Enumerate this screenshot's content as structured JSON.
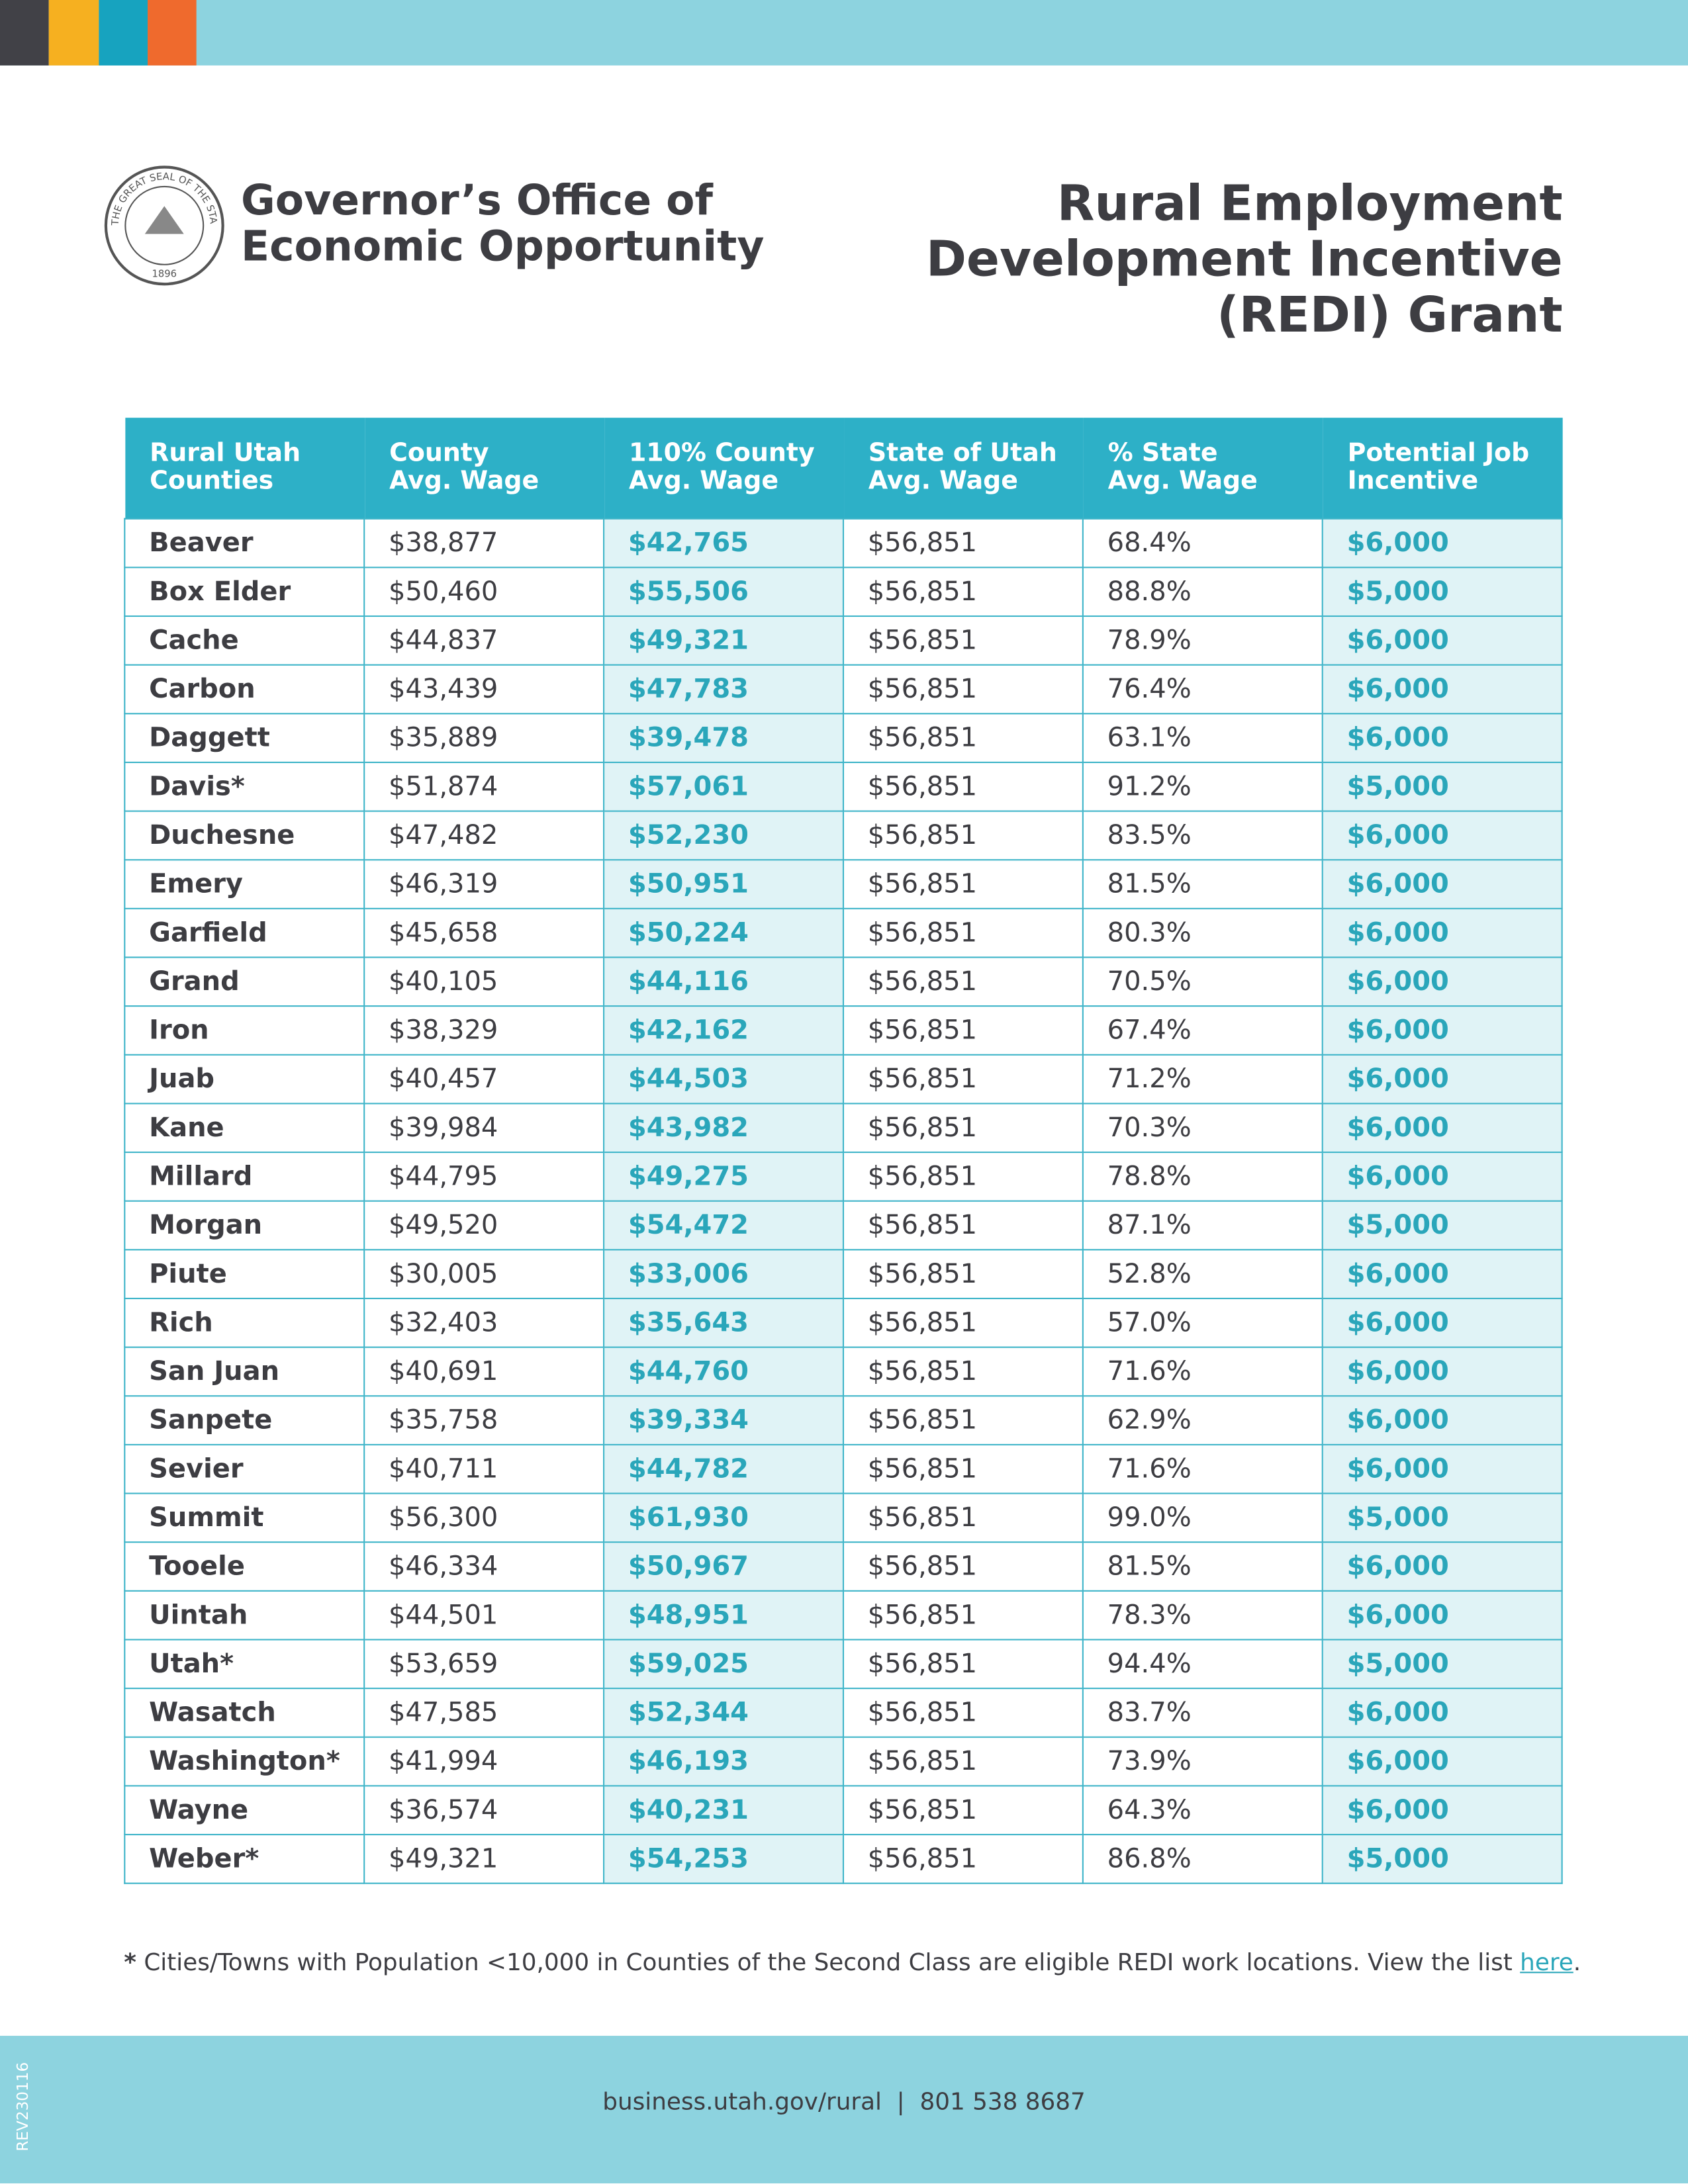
{
  "header": {
    "org": [
      "Governor’s Office of",
      "Economic Opportunity"
    ],
    "seal": {
      "text": "THE GREAT SEAL OF THE STATE OF UTAH",
      "year": "1896"
    },
    "title": [
      "Rural Employment",
      "Development Incentive",
      "(REDI) Grant"
    ]
  },
  "table": {
    "columns": [
      [
        "Rural Utah",
        "Counties"
      ],
      [
        "County",
        "Avg. Wage"
      ],
      [
        "110% County",
        "Avg. Wage"
      ],
      [
        "State of Utah",
        "Avg. Wage"
      ],
      [
        "% State",
        "Avg. Wage"
      ],
      [
        "Potential Job",
        "Incentive"
      ]
    ],
    "rows": [
      [
        "Beaver",
        "$38,877",
        "$42,765",
        "$56,851",
        "68.4%",
        "$6,000"
      ],
      [
        "Box Elder",
        "$50,460",
        "$55,506",
        "$56,851",
        "88.8%",
        "$5,000"
      ],
      [
        "Cache",
        "$44,837",
        "$49,321",
        "$56,851",
        "78.9%",
        "$6,000"
      ],
      [
        "Carbon",
        "$43,439",
        "$47,783",
        "$56,851",
        "76.4%",
        "$6,000"
      ],
      [
        "Daggett",
        "$35,889",
        "$39,478",
        "$56,851",
        "63.1%",
        "$6,000"
      ],
      [
        "Davis*",
        "$51,874",
        "$57,061",
        "$56,851",
        "91.2%",
        "$5,000"
      ],
      [
        "Duchesne",
        "$47,482",
        "$52,230",
        "$56,851",
        "83.5%",
        "$6,000"
      ],
      [
        "Emery",
        "$46,319",
        "$50,951",
        "$56,851",
        "81.5%",
        "$6,000"
      ],
      [
        "Garfield",
        "$45,658",
        "$50,224",
        "$56,851",
        "80.3%",
        "$6,000"
      ],
      [
        "Grand",
        "$40,105",
        "$44,116",
        "$56,851",
        "70.5%",
        "$6,000"
      ],
      [
        "Iron",
        "$38,329",
        "$42,162",
        "$56,851",
        "67.4%",
        "$6,000"
      ],
      [
        "Juab",
        "$40,457",
        "$44,503",
        "$56,851",
        "71.2%",
        "$6,000"
      ],
      [
        "Kane",
        "$39,984",
        "$43,982",
        "$56,851",
        "70.3%",
        "$6,000"
      ],
      [
        "Millard",
        "$44,795",
        "$49,275",
        "$56,851",
        "78.8%",
        "$6,000"
      ],
      [
        "Morgan",
        "$49,520",
        "$54,472",
        "$56,851",
        "87.1%",
        "$5,000"
      ],
      [
        "Piute",
        "$30,005",
        "$33,006",
        "$56,851",
        "52.8%",
        "$6,000"
      ],
      [
        "Rich",
        "$32,403",
        "$35,643",
        "$56,851",
        "57.0%",
        "$6,000"
      ],
      [
        "San Juan",
        "$40,691",
        "$44,760",
        "$56,851",
        "71.6%",
        "$6,000"
      ],
      [
        "Sanpete",
        "$35,758",
        "$39,334",
        "$56,851",
        "62.9%",
        "$6,000"
      ],
      [
        "Sevier",
        "$40,711",
        "$44,782",
        "$56,851",
        "71.6%",
        "$6,000"
      ],
      [
        "Summit",
        "$56,300",
        "$61,930",
        "$56,851",
        "99.0%",
        "$5,000"
      ],
      [
        "Tooele",
        "$46,334",
        "$50,967",
        "$56,851",
        "81.5%",
        "$6,000"
      ],
      [
        "Uintah",
        "$44,501",
        "$48,951",
        "$56,851",
        "78.3%",
        "$6,000"
      ],
      [
        "Utah*",
        "$53,659",
        "$59,025",
        "$56,851",
        "94.4%",
        "$5,000"
      ],
      [
        "Wasatch",
        "$47,585",
        "$52,344",
        "$56,851",
        "83.7%",
        "$6,000"
      ],
      [
        "Washington*",
        "$41,994",
        "$46,193",
        "$56,851",
        "73.9%",
        "$6,000"
      ],
      [
        "Wayne",
        "$36,574",
        "$40,231",
        "$56,851",
        "64.3%",
        "$6,000"
      ],
      [
        "Weber*",
        "$49,321",
        "$54,253",
        "$56,851",
        "86.8%",
        "$5,000"
      ]
    ]
  },
  "footnote": {
    "marker": "*",
    "text": "Cities/Towns with Population <10,000 in Counties of the Second Class are eligible REDI work locations. View the list",
    "link": "here",
    "end": "."
  },
  "footer": {
    "contact": "business.utah.gov/rural  |  801 538 8687",
    "revision": "REV230116"
  }
}
